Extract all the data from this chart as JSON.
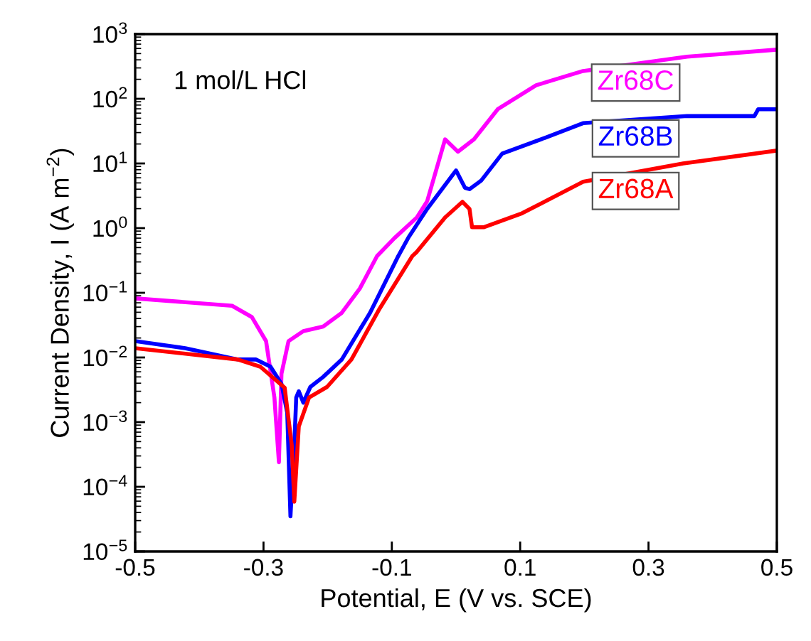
{
  "chart_data": {
    "type": "line",
    "xlabel": "Potential, E (V vs. SCE)",
    "ylabel": "Current Density, I (A m$^{−2}$)",
    "log": "y",
    "xlim": [
      -0.5,
      0.5
    ],
    "xticks": [
      -0.5,
      -0.3,
      -0.1,
      0.1,
      0.3,
      0.5
    ],
    "ylim": [
      1e-05,
      1000
    ],
    "yticks": [
      {
        "value": 1e-05,
        "label": "10$^{−5}$"
      },
      {
        "value": 0.0001,
        "label": "10$^{−4}$"
      },
      {
        "value": 0.001,
        "label": "10$^{−3}$"
      },
      {
        "value": 0.01,
        "label": "10$^{−2}$"
      },
      {
        "value": 0.1,
        "label": "10$^{−1}$"
      },
      {
        "value": 1,
        "label": "10$^{0}$"
      },
      {
        "value": 10,
        "label": "10$^{1}$"
      },
      {
        "value": 100,
        "label": "10$^{2}$"
      },
      {
        "value": 1000,
        "label": "10$^{3}$"
      }
    ],
    "annotations": [
      "1 mol/L HCl"
    ],
    "grid": false,
    "legend": false,
    "line_style": "solid",
    "marker": "none",
    "series": [
      {
        "name": "Zr68C",
        "color": "#ff00ff",
        "x": [
          -0.5,
          -0.349,
          -0.318,
          -0.296,
          -0.283,
          -0.276,
          -0.272,
          -0.261,
          -0.238,
          -0.207,
          -0.178,
          -0.15,
          -0.123,
          -0.096,
          -0.061,
          -0.045,
          -0.017,
          0.003,
          0.028,
          0.065,
          0.125,
          0.198,
          0.36,
          0.5
        ],
        "values": [
          0.082,
          0.063,
          0.042,
          0.0179,
          0.0024,
          0.00024,
          0.0056,
          0.0179,
          0.0255,
          0.03,
          0.049,
          0.116,
          0.37,
          0.7,
          1.46,
          2.6,
          23.6,
          15.2,
          23.6,
          69,
          162,
          269,
          447,
          575
        ]
      },
      {
        "name": "Zr68B",
        "color": "#0000ff",
        "x": [
          -0.5,
          -0.422,
          -0.34,
          -0.312,
          -0.289,
          -0.272,
          -0.263,
          -0.258,
          -0.252,
          -0.249,
          -0.245,
          -0.238,
          -0.227,
          -0.207,
          -0.178,
          -0.134,
          -0.09,
          -0.074,
          -0.045,
          0.0,
          0.014,
          0.021,
          0.039,
          0.072,
          0.139,
          0.198,
          0.36,
          0.465,
          0.471,
          0.5
        ],
        "values": [
          0.0179,
          0.0139,
          0.0093,
          0.0093,
          0.0072,
          0.0039,
          0.0014,
          3.5e-05,
          0.00044,
          0.0024,
          0.003,
          0.002,
          0.0035,
          0.005,
          0.0093,
          0.049,
          0.37,
          0.72,
          1.98,
          7.8,
          4.2,
          4.0,
          5.4,
          14.2,
          25,
          42,
          54,
          54,
          69,
          69
        ]
      },
      {
        "name": "Zr68A",
        "color": "#ff0000",
        "x": [
          -0.5,
          -0.34,
          -0.305,
          -0.267,
          -0.256,
          -0.252,
          -0.245,
          -0.229,
          -0.201,
          -0.163,
          -0.119,
          -0.068,
          -0.061,
          -0.017,
          0.01,
          0.021,
          0.025,
          0.043,
          0.103,
          0.198,
          0.354,
          0.5
        ],
        "values": [
          0.0139,
          0.0093,
          0.0072,
          0.0034,
          0.00044,
          5.9e-05,
          0.00086,
          0.0024,
          0.0035,
          0.0093,
          0.057,
          0.37,
          0.43,
          1.46,
          2.55,
          1.98,
          1.03,
          1.03,
          1.7,
          5.2,
          10,
          15.8
        ]
      }
    ]
  }
}
